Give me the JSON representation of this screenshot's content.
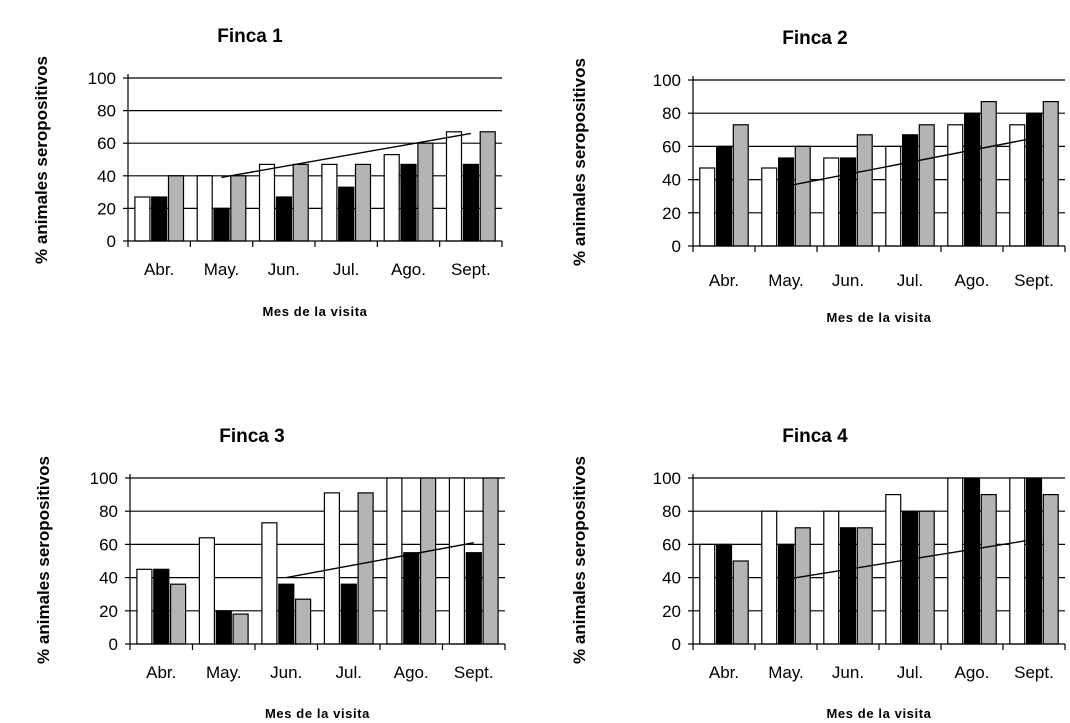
{
  "chart_data": [
    {
      "type": "bar",
      "title": "Finca 1",
      "xlabel": "Mes de la visita",
      "ylabel": "% animales seropositivos",
      "categories": [
        "Abr.",
        "May.",
        "Jun.",
        "Jul.",
        "Ago.",
        "Sept."
      ],
      "ylim": [
        0,
        100
      ],
      "yticks": [
        "0",
        "20",
        "40",
        "60",
        "80",
        "100"
      ],
      "grid": true,
      "series": [
        {
          "values": [
            27,
            40,
            47,
            47,
            53,
            67
          ],
          "color": "#ffffff"
        },
        {
          "values": [
            27,
            20,
            27,
            33,
            47,
            47
          ],
          "color": "#000000"
        },
        {
          "values": [
            40,
            40,
            47,
            47,
            60,
            67
          ],
          "color": "#b4b4b4"
        }
      ],
      "trend": {
        "from": [
          1,
          39
        ],
        "to": [
          5,
          66
        ]
      }
    },
    {
      "type": "bar",
      "title": "Finca 2",
      "xlabel": "Mes de la visita",
      "ylabel": "% animales seropositivos",
      "categories": [
        "Abr.",
        "May.",
        "Jun.",
        "Jul.",
        "Ago.",
        "Sept."
      ],
      "ylim": [
        0,
        100
      ],
      "yticks": [
        "0",
        "20",
        "40",
        "60",
        "80",
        "100"
      ],
      "grid": true,
      "series": [
        {
          "values": [
            47,
            47,
            53,
            60,
            73,
            73
          ],
          "color": "#ffffff"
        },
        {
          "values": [
            60,
            53,
            53,
            67,
            80,
            80
          ],
          "color": "#000000"
        },
        {
          "values": [
            73,
            60,
            67,
            73,
            87,
            87
          ],
          "color": "#b4b4b4"
        }
      ],
      "trend": {
        "from": [
          1,
          36
        ],
        "to": [
          5,
          65
        ]
      }
    },
    {
      "type": "bar",
      "title": "Finca 3",
      "xlabel": "Mes de la visita",
      "ylabel": "% animales seropositivos",
      "categories": [
        "Abr.",
        "May.",
        "Jun.",
        "Jul.",
        "Ago.",
        "Sept."
      ],
      "ylim": [
        0,
        100
      ],
      "yticks": [
        "0",
        "20",
        "40",
        "60",
        "80",
        "100"
      ],
      "grid": true,
      "series": [
        {
          "values": [
            45,
            64,
            73,
            91,
            100,
            100
          ],
          "color": "#ffffff"
        },
        {
          "values": [
            45,
            20,
            36,
            36,
            55,
            55
          ],
          "color": "#000000"
        },
        {
          "values": [
            36,
            18,
            27,
            91,
            100,
            100
          ],
          "color": "#b4b4b4"
        }
      ],
      "trend": {
        "from": [
          2,
          40
        ],
        "to": [
          5,
          61
        ]
      }
    },
    {
      "type": "bar",
      "title": "Finca 4",
      "xlabel": "Mes de la visita",
      "ylabel": "% animales seropositivos",
      "categories": [
        "Abr.",
        "May.",
        "Jun.",
        "Jul.",
        "Ago.",
        "Sept."
      ],
      "ylim": [
        0,
        100
      ],
      "yticks": [
        "0",
        "20",
        "40",
        "60",
        "80",
        "100"
      ],
      "grid": true,
      "series": [
        {
          "values": [
            60,
            80,
            80,
            90,
            100,
            100
          ],
          "color": "#ffffff"
        },
        {
          "values": [
            60,
            60,
            70,
            80,
            100,
            100
          ],
          "color": "#000000"
        },
        {
          "values": [
            50,
            70,
            70,
            80,
            90,
            90
          ],
          "color": "#b4b4b4"
        }
      ],
      "trend": {
        "from": [
          1,
          39
        ],
        "to": [
          5,
          63
        ]
      }
    }
  ]
}
